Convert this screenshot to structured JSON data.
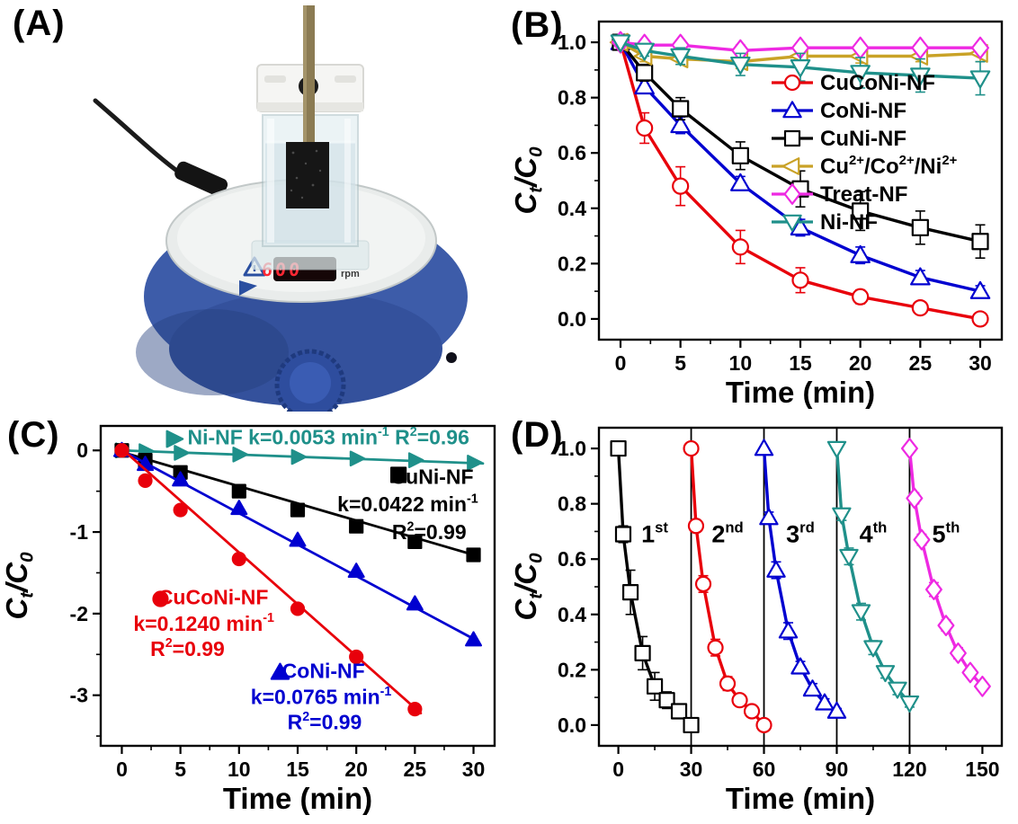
{
  "panels": {
    "a": {
      "label": "(A)",
      "display_value": "600",
      "display_unit": "rpm"
    },
    "b": {
      "label": "(B)"
    },
    "c": {
      "label": "(C)"
    },
    "d": {
      "label": "(D)"
    }
  },
  "colors": {
    "red": "#e8000b",
    "blue": "#0000d0",
    "black": "#000000",
    "dark_yellow": "#c9a227",
    "magenta": "#ee29e2",
    "teal": "#1f908a",
    "stirrer_base_blue": "#3d5ca9",
    "led_red": "#ff2733"
  },
  "chart_data": [
    {
      "id": "B",
      "type": "line",
      "xlabel": "Time (min)",
      "ylabel": "C_{t}/C_{0}",
      "xlim": [
        -1.8,
        31.8
      ],
      "ylim": [
        -0.075,
        1.075
      ],
      "xticks": {
        "values": [
          0,
          5,
          10,
          15,
          20,
          25,
          30
        ],
        "labels": [
          "0",
          "5",
          "10",
          "15",
          "20",
          "25",
          "30"
        ]
      },
      "yticks": {
        "values": [
          0,
          0.2,
          0.4,
          0.6,
          0.8,
          1.0
        ],
        "labels": [
          "0.0",
          "0.2",
          "0.4",
          "0.6",
          "0.8",
          "1.0"
        ]
      },
      "x": [
        0,
        2,
        5,
        10,
        15,
        20,
        25,
        30
      ],
      "legend_position": "inside-right",
      "series": [
        {
          "name": "CuCoNi-NF",
          "color": "#e8000b",
          "marker": "circle",
          "filled": false,
          "values": [
            1.0,
            0.69,
            0.48,
            0.26,
            0.14,
            0.08,
            0.04,
            0.0
          ],
          "errors": [
            0,
            0.055,
            0.07,
            0.06,
            0.045,
            0.025,
            0.015,
            0.008
          ]
        },
        {
          "name": "CoNi-NF",
          "color": "#0000d0",
          "marker": "triangle-up",
          "filled": false,
          "values": [
            1.0,
            0.84,
            0.7,
            0.49,
            0.33,
            0.23,
            0.15,
            0.1
          ],
          "errors": [
            0,
            0.02,
            0.03,
            0.025,
            0.03,
            0.03,
            0.025,
            0.02
          ]
        },
        {
          "name": "CuNi-NF",
          "color": "#000000",
          "marker": "square",
          "filled": false,
          "values": [
            1.0,
            0.89,
            0.76,
            0.59,
            0.47,
            0.39,
            0.33,
            0.28
          ],
          "errors": [
            0,
            0.03,
            0.04,
            0.05,
            0.065,
            0.07,
            0.06,
            0.06
          ]
        },
        {
          "name": "Cu^{2+}/Co^{2+}/Ni^{2+}",
          "color": "#c9a227",
          "marker": "triangle-left",
          "filled": false,
          "values": [
            1.0,
            0.95,
            0.94,
            0.93,
            0.95,
            0.95,
            0.95,
            0.96
          ],
          "errors": [
            0.008,
            0.02,
            0.02,
            0.025,
            0.03,
            0.025,
            0.02,
            0.03
          ]
        },
        {
          "name": "Treat-NF",
          "color": "#ee29e2",
          "marker": "diamond",
          "filled": false,
          "values": [
            1.0,
            0.99,
            0.99,
            0.97,
            0.98,
            0.98,
            0.98,
            0.98
          ],
          "errors": [
            0.008,
            0.01,
            0.012,
            0.02,
            0.012,
            0.01,
            0.01,
            0.012
          ]
        },
        {
          "name": "Ni-NF",
          "color": "#1f908a",
          "marker": "triangle-down",
          "filled": false,
          "values": [
            1.0,
            0.97,
            0.95,
            0.92,
            0.91,
            0.89,
            0.88,
            0.87
          ],
          "errors": [
            0,
            0.02,
            0.03,
            0.04,
            0.05,
            0.055,
            0.06,
            0.06
          ]
        }
      ]
    },
    {
      "id": "C",
      "type": "scatter",
      "xlabel": "Time (min)",
      "ylabel": "C_{t}/C_{0}",
      "xlim": [
        -1.8,
        31.8
      ],
      "ylim": [
        -3.62,
        0.3
      ],
      "xticks": {
        "values": [
          0,
          5,
          10,
          15,
          20,
          25,
          30
        ],
        "labels": [
          "0",
          "5",
          "10",
          "15",
          "20",
          "25",
          "30"
        ]
      },
      "yticks": {
        "values": [
          0,
          -1,
          -2,
          -3
        ],
        "labels": [
          "0",
          "-1",
          "-2",
          "-3"
        ]
      },
      "series": [
        {
          "name": "Ni-NF",
          "color": "#1f908a",
          "marker": "triangle-right",
          "filled": true,
          "x": [
            0,
            2,
            5,
            10,
            15,
            20,
            25,
            30
          ],
          "values": [
            0,
            -0.01,
            -0.03,
            -0.05,
            -0.08,
            -0.1,
            -0.12,
            -0.15
          ],
          "fit": [
            0,
            0,
            30.8,
            -0.16
          ],
          "k": "0.0053",
          "r2": "0.96"
        },
        {
          "name": "CuNi-NF",
          "color": "#000000",
          "marker": "square",
          "filled": true,
          "x": [
            0,
            2,
            5,
            10,
            15,
            20,
            25,
            30
          ],
          "values": [
            0,
            -0.12,
            -0.27,
            -0.5,
            -0.73,
            -0.93,
            -1.12,
            -1.28
          ],
          "fit": [
            0,
            -0.02,
            30.5,
            -1.3
          ],
          "k": "0.0422",
          "r2": "0.99"
        },
        {
          "name": "CoNi-NF",
          "color": "#0000d0",
          "marker": "triangle-up",
          "filled": true,
          "x": [
            0,
            2,
            5,
            10,
            15,
            20,
            25,
            30
          ],
          "values": [
            0,
            -0.17,
            -0.36,
            -0.71,
            -1.1,
            -1.48,
            -1.88,
            -2.32
          ],
          "fit": [
            0,
            0.0,
            30.4,
            -2.34
          ],
          "k": "0.0765",
          "r2": "0.99"
        },
        {
          "name": "CuCoNi-NF",
          "color": "#e8000b",
          "marker": "circle",
          "filled": true,
          "x": [
            0,
            2,
            5,
            10,
            15,
            20,
            25
          ],
          "values": [
            0,
            -0.37,
            -0.73,
            -1.33,
            -1.94,
            -2.53,
            -3.17
          ],
          "fit": [
            0,
            0.02,
            25.5,
            -3.22
          ],
          "k": "0.1240",
          "r2": "0.99"
        }
      ],
      "annotations": [
        {
          "text": "Ni-NF k=0.0053 min^{-1} R^{2}=0.96",
          "color": "#1f908a",
          "x": 5.6,
          "y": 0.16,
          "anchor": "start",
          "marker": "triangle-right",
          "mx": 4.4,
          "my": 0.14
        },
        {
          "text": "CuNi-NF",
          "color": "#000000",
          "x": 30.0,
          "y": -0.32,
          "anchor": "end",
          "marker": "square",
          "mx": 23.6,
          "my": -0.3
        },
        {
          "text": "k=0.0422 min^{-1}",
          "color": "#000000",
          "x": 30.4,
          "y": -0.66,
          "anchor": "end"
        },
        {
          "text": "R^{2}=0.99",
          "color": "#000000",
          "x": 29.4,
          "y": -1.0,
          "anchor": "end"
        },
        {
          "text": "CuCoNi-NF",
          "color": "#e8000b",
          "x": 7.8,
          "y": -1.8,
          "anchor": "middle",
          "marker": "circle",
          "mx": 3.3,
          "my": -1.82
        },
        {
          "text": "k=0.1240 min^{-1}",
          "color": "#e8000b",
          "x": 7.0,
          "y": -2.12,
          "anchor": "middle"
        },
        {
          "text": "R^{2}=0.99",
          "color": "#e8000b",
          "x": 5.6,
          "y": -2.43,
          "anchor": "middle"
        },
        {
          "text": "CoNi-NF",
          "color": "#0000d0",
          "x": 17.2,
          "y": -2.7,
          "anchor": "middle",
          "marker": "triangle-up",
          "mx": 13.5,
          "my": -2.72
        },
        {
          "text": "k=0.0765 min^{-1}",
          "color": "#0000d0",
          "x": 17.0,
          "y": -3.02,
          "anchor": "middle"
        },
        {
          "text": "R^{2}=0.99",
          "color": "#0000d0",
          "x": 17.3,
          "y": -3.33,
          "anchor": "middle"
        }
      ]
    },
    {
      "id": "D",
      "type": "line",
      "xlabel": "Time (min)",
      "ylabel": "C_{t}/C_{0}",
      "xlim": [
        -8,
        158
      ],
      "ylim": [
        -0.075,
        1.075
      ],
      "xticks": {
        "values": [
          0,
          30,
          60,
          90,
          120,
          150
        ],
        "labels": [
          "0",
          "30",
          "60",
          "90",
          "120",
          "150"
        ]
      },
      "yticks": {
        "values": [
          0,
          0.2,
          0.4,
          0.6,
          0.8,
          1.0
        ],
        "labels": [
          "0.0",
          "0.2",
          "0.4",
          "0.6",
          "0.8",
          "1.0"
        ]
      },
      "vlines": [
        30,
        60,
        90,
        120
      ],
      "series": [
        {
          "name": "1st",
          "cycle_label": "1^{st}",
          "label_x": 15,
          "label_y": 0.66,
          "color": "#000000",
          "marker": "square",
          "filled": false,
          "x": [
            0,
            2,
            5,
            10,
            15,
            20,
            25,
            30
          ],
          "values": [
            1.0,
            0.69,
            0.48,
            0.26,
            0.14,
            0.09,
            0.05,
            0.0
          ],
          "errors": [
            0,
            0.03,
            0.08,
            0.06,
            0.05,
            0.03,
            0.02,
            0.005
          ]
        },
        {
          "name": "2nd",
          "cycle_label": "2^{nd}",
          "label_x": 45,
          "label_y": 0.66,
          "color": "#e8000b",
          "marker": "circle",
          "filled": false,
          "x": [
            30,
            32,
            35,
            40,
            45,
            50,
            55,
            60
          ],
          "values": [
            1.0,
            0.72,
            0.51,
            0.28,
            0.15,
            0.09,
            0.05,
            0.0
          ],
          "errors": [
            0,
            0.02,
            0.03,
            0.03,
            0.025,
            0.02,
            0.015,
            0.005
          ]
        },
        {
          "name": "3rd",
          "cycle_label": "3^{rd}",
          "label_x": 75,
          "label_y": 0.66,
          "color": "#0000d0",
          "marker": "triangle-up",
          "filled": false,
          "x": [
            60,
            62,
            65,
            70,
            75,
            80,
            85,
            90
          ],
          "values": [
            1.0,
            0.75,
            0.56,
            0.34,
            0.21,
            0.13,
            0.08,
            0.05
          ],
          "errors": [
            0,
            0.02,
            0.03,
            0.03,
            0.02,
            0.02,
            0.015,
            0.01
          ]
        },
        {
          "name": "4th",
          "cycle_label": "4^{th}",
          "label_x": 105,
          "label_y": 0.66,
          "color": "#1f908a",
          "marker": "triangle-down",
          "filled": false,
          "x": [
            90,
            92,
            95,
            100,
            105,
            110,
            115,
            120
          ],
          "values": [
            1.0,
            0.76,
            0.61,
            0.41,
            0.28,
            0.19,
            0.13,
            0.08
          ],
          "errors": [
            0,
            0.02,
            0.03,
            0.03,
            0.025,
            0.02,
            0.02,
            0.015
          ]
        },
        {
          "name": "5th",
          "cycle_label": "5^{th}",
          "label_x": 135,
          "label_y": 0.66,
          "color": "#ee29e2",
          "marker": "diamond",
          "filled": false,
          "x": [
            120,
            122,
            125,
            130,
            135,
            140,
            145,
            150
          ],
          "values": [
            1.0,
            0.82,
            0.67,
            0.49,
            0.36,
            0.26,
            0.19,
            0.14
          ],
          "errors": [
            0,
            0.02,
            0.02,
            0.025,
            0.02,
            0.02,
            0.015,
            0.015
          ]
        }
      ]
    }
  ]
}
